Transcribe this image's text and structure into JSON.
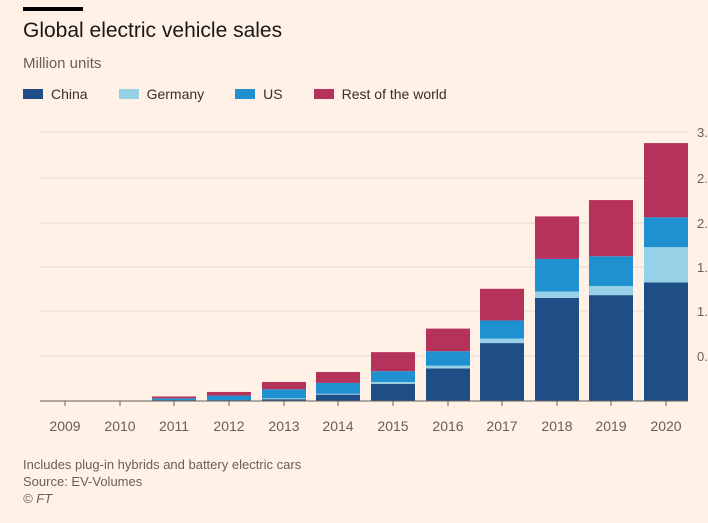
{
  "header": {
    "title": "Global electric vehicle sales",
    "subtitle": "Million units"
  },
  "footer": {
    "note": "Includes plug-in hybrids and battery electric cars",
    "source": "Source: EV-Volumes",
    "copyright": "© FT"
  },
  "colors": {
    "China": "#1f4e86",
    "Germany": "#96d1e8",
    "US": "#2091d0",
    "Rest of the world": "#b5325b",
    "grid": "#e7d9cd",
    "axis": "#66605c"
  },
  "chart_data": {
    "type": "bar",
    "stacked": true,
    "categories": [
      "2009",
      "2010",
      "2011",
      "2012",
      "2013",
      "2014",
      "2015",
      "2016",
      "2017",
      "2018",
      "2019",
      "2020"
    ],
    "series": [
      {
        "name": "China",
        "values": [
          0,
          0,
          0.01,
          0.01,
          0.02,
          0.07,
          0.19,
          0.36,
          0.64,
          1.14,
          1.17,
          1.31
        ]
      },
      {
        "name": "Germany",
        "values": [
          0,
          0,
          0.0,
          0.0,
          0.01,
          0.01,
          0.02,
          0.03,
          0.05,
          0.07,
          0.1,
          0.39
        ]
      },
      {
        "name": "US",
        "values": [
          0,
          0,
          0.02,
          0.05,
          0.1,
          0.12,
          0.12,
          0.16,
          0.2,
          0.36,
          0.33,
          0.33
        ]
      },
      {
        "name": "Rest of the world",
        "values": [
          0,
          0,
          0.02,
          0.04,
          0.08,
          0.12,
          0.21,
          0.25,
          0.35,
          0.47,
          0.62,
          0.82
        ]
      }
    ],
    "y_ticks": [
      "3.",
      "2.",
      "2.",
      "1.",
      "1.",
      "0."
    ],
    "ylim": [
      0,
      3.2
    ],
    "grid": true,
    "legend": "top-left",
    "xlabel": "",
    "ylabel": ""
  }
}
